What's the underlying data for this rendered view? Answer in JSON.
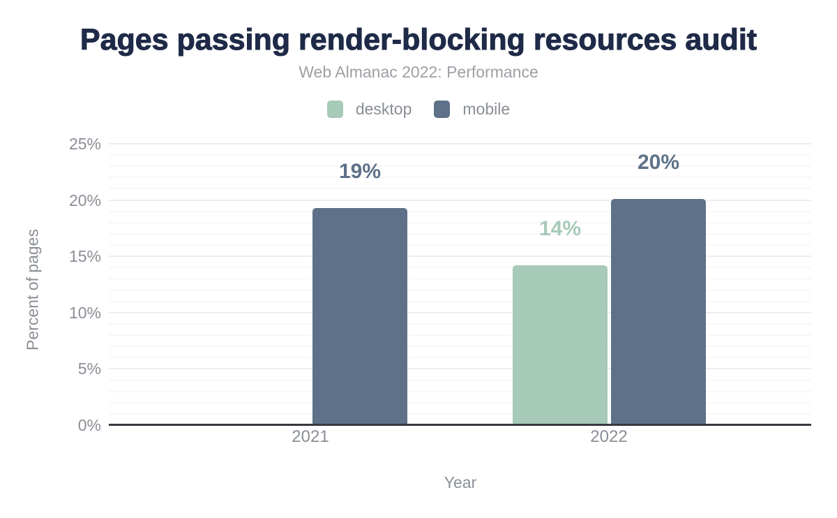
{
  "header": {
    "title": "Pages passing render-blocking resources audit",
    "subtitle": "Web Almanac 2022: Performance"
  },
  "legend": [
    {
      "label": "desktop",
      "color": "#a7cab9"
    },
    {
      "label": "mobile",
      "color": "#5e7189"
    }
  ],
  "colors": {
    "desktop": "#a7cab9",
    "mobile": "#5e7189",
    "title": "#1e2a47",
    "axis_text": "#8a8e95",
    "axis_line": "#36393f"
  },
  "chart_data": {
    "type": "bar",
    "title": "Pages passing render-blocking resources audit",
    "subtitle": "Web Almanac 2022: Performance",
    "categories": [
      "2021",
      "2022"
    ],
    "series": [
      {
        "name": "desktop",
        "color": "#a7cab9",
        "values": [
          null,
          14.2
        ],
        "labels": [
          null,
          "14%"
        ]
      },
      {
        "name": "mobile",
        "color": "#5e7189",
        "values": [
          19.3,
          20.1
        ],
        "labels": [
          "19%",
          "20%"
        ]
      }
    ],
    "xlabel": "Year",
    "ylabel": "Percent of pages",
    "ylim": [
      0,
      25
    ],
    "yticks": [
      0,
      5,
      10,
      15,
      20,
      25
    ],
    "ytick_labels": [
      "0%",
      "5%",
      "10%",
      "15%",
      "20%",
      "25%"
    ],
    "grid": "horizontal, minor every 1%, major every 5%",
    "legend_position": "top"
  }
}
